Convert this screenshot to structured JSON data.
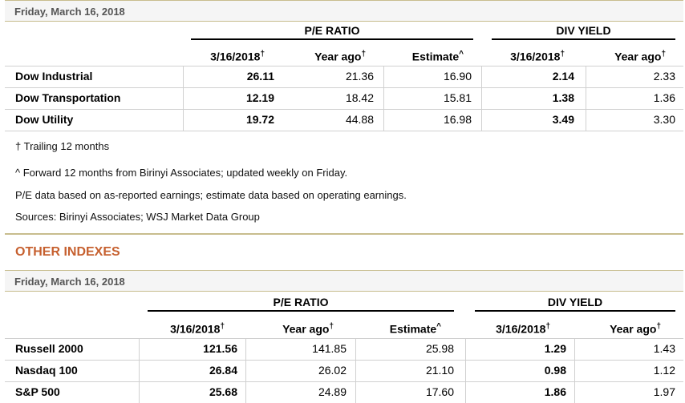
{
  "table1": {
    "date": "Friday, March 16, 2018",
    "groups": {
      "pe": "P/E RATIO",
      "div": "DIV YIELD"
    },
    "headers": {
      "pe_current": "3/16/2018",
      "pe_current_mark": "†",
      "pe_yearago": "Year ago",
      "pe_yearago_mark": "†",
      "pe_estimate": "Estimate",
      "pe_estimate_mark": "^",
      "div_current": "3/16/2018",
      "div_current_mark": "†",
      "div_yearago": "Year ago",
      "div_yearago_mark": "†"
    },
    "rows": [
      {
        "name": "Dow Industrial",
        "pe_current": "26.11",
        "pe_yearago": "21.36",
        "pe_estimate": "16.90",
        "div_current": "2.14",
        "div_yearago": "2.33"
      },
      {
        "name": "Dow Transportation",
        "pe_current": "12.19",
        "pe_yearago": "18.42",
        "pe_estimate": "15.81",
        "div_current": "1.38",
        "div_yearago": "1.36"
      },
      {
        "name": "Dow Utility",
        "pe_current": "19.72",
        "pe_yearago": "44.88",
        "pe_estimate": "16.98",
        "div_current": "3.49",
        "div_yearago": "3.30"
      }
    ],
    "notes": [
      "† Trailing 12 months",
      "^ Forward 12 months from Birinyi Associates; updated weekly on Friday.",
      "P/E data based on as-reported earnings; estimate data based on operating earnings.",
      "Sources: Birinyi Associates; WSJ Market Data Group"
    ]
  },
  "other_title": "OTHER INDEXES",
  "table2": {
    "date": "Friday, March 16, 2018",
    "groups": {
      "pe": "P/E RATIO",
      "div": "DIV YIELD"
    },
    "headers": {
      "pe_current": "3/16/2018",
      "pe_current_mark": "†",
      "pe_yearago": "Year ago",
      "pe_yearago_mark": "†",
      "pe_estimate": "Estimate",
      "pe_estimate_mark": "^",
      "div_current": "3/16/2018",
      "div_current_mark": "†",
      "div_yearago": "Year ago",
      "div_yearago_mark": "†"
    },
    "rows": [
      {
        "name": "Russell 2000",
        "pe_current": "121.56",
        "pe_yearago": "141.85",
        "pe_estimate": "25.98",
        "div_current": "1.29",
        "div_yearago": "1.43"
      },
      {
        "name": "Nasdaq 100",
        "pe_current": "26.84",
        "pe_yearago": "26.02",
        "pe_estimate": "21.10",
        "div_current": "0.98",
        "div_yearago": "1.12"
      },
      {
        "name": "S&P 500",
        "pe_current": "25.68",
        "pe_yearago": "24.89",
        "pe_estimate": "17.60",
        "div_current": "1.86",
        "div_yearago": "1.97"
      }
    ]
  }
}
